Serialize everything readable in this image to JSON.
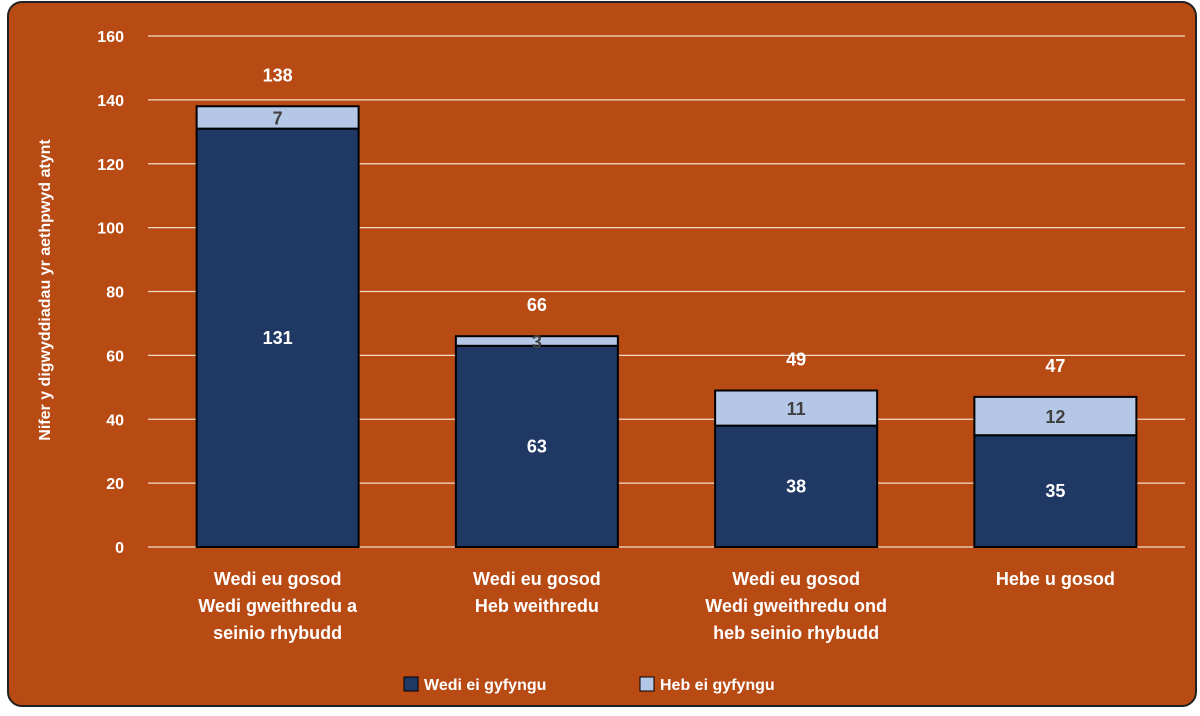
{
  "chart_data": {
    "type": "bar",
    "stacked": true,
    "categories": [
      [
        "Wedi eu gosod",
        "Wedi gweithredu a",
        "seinio rhybudd"
      ],
      [
        "Wedi eu gosod",
        "Heb weithredu"
      ],
      [
        "Wedi eu gosod",
        "Wedi gweithredu ond",
        "heb seinio rhybudd"
      ],
      [
        "Hebe u gosod"
      ]
    ],
    "series": [
      {
        "name": "Wedi ei gyfyngu",
        "values": [
          131,
          63,
          38,
          35
        ]
      },
      {
        "name": "Heb ei gyfyngu",
        "values": [
          7,
          3,
          11,
          12
        ]
      }
    ],
    "totals": [
      138,
      66,
      49,
      47
    ],
    "ylabel": "Nifer y digwyddiadau yr aethpwyd atynt",
    "ylim": [
      0,
      160
    ],
    "yticks": [
      0,
      20,
      40,
      60,
      80,
      100,
      120,
      140,
      160
    ],
    "grid": true,
    "legend_position": "bottom",
    "colors": {
      "background": "#B84A14",
      "series_dark": "#1F3864",
      "series_light": "#B4C7E7",
      "text": "#FFFFFF",
      "light_label": "#404040",
      "grid": "#F2DCC8"
    }
  }
}
